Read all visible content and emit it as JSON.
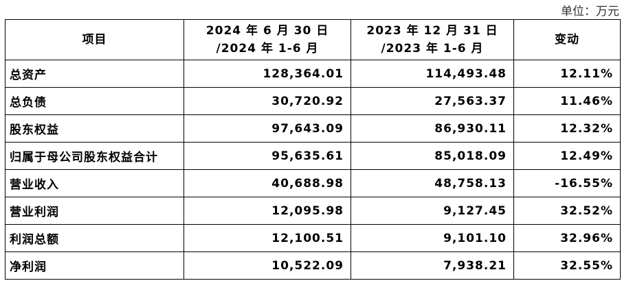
{
  "unit": "单位：万元",
  "table": {
    "header": [
      [
        "项目"
      ],
      [
        "2024 年 6 月 30 日",
        "/2024 年 1-6 月"
      ],
      [
        "2023 年 12 月 31 日",
        "/2023 年 1-6 月"
      ],
      [
        "变动"
      ]
    ],
    "rows": [
      [
        "总资产",
        "128,364.01",
        "114,493.48",
        "12.11%"
      ],
      [
        "总负债",
        "30,720.92",
        "27,563.37",
        "11.46%"
      ],
      [
        "股东权益",
        "97,643.09",
        "86,930.11",
        "12.32%"
      ],
      [
        "归属于母公司股东权益合计",
        "95,635.61",
        "85,018.09",
        "12.49%"
      ],
      [
        "营业收入",
        "40,688.98",
        "48,758.13",
        "-16.55%"
      ],
      [
        "营业利润",
        "12,095.98",
        "9,127.45",
        "32.52%"
      ],
      [
        "利润总额",
        "12,100.51",
        "9,101.10",
        "32.96%"
      ],
      [
        "净利润",
        "10,522.09",
        "7,938.21",
        "32.55%"
      ]
    ]
  }
}
